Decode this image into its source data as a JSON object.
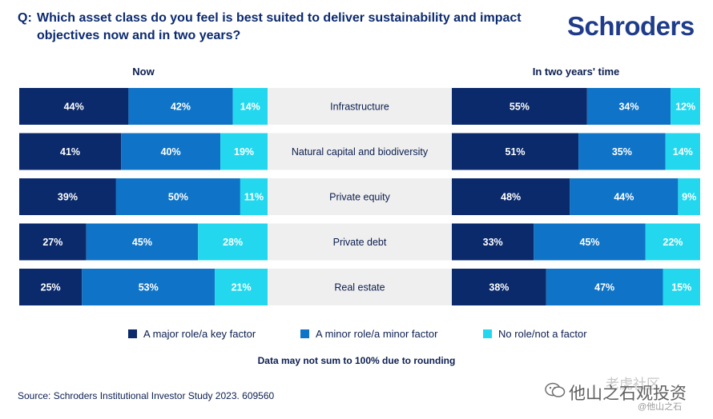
{
  "header": {
    "question_prefix": "Q:",
    "question": "Which asset class do you feel is best suited to deliver sustainability and impact objectives now and in two years?",
    "logo": "Schroders"
  },
  "panels": {
    "now": "Now",
    "future": "In two years' time"
  },
  "colors": {
    "major": "#0b2a6b",
    "minor": "#0f74c7",
    "none": "#23d8ee",
    "label_bg": "#efefef"
  },
  "chart_data": [
    {
      "type": "bar",
      "orientation": "horizontal",
      "stacked": true,
      "panel": "Now",
      "categories": [
        "Infrastructure",
        "Natural capital and biodiversity",
        "Private equity",
        "Private debt",
        "Real estate"
      ],
      "series": [
        {
          "name": "A major role/a key factor",
          "values": [
            44,
            41,
            39,
            27,
            25
          ]
        },
        {
          "name": "A minor role/a minor factor",
          "values": [
            42,
            40,
            50,
            45,
            53
          ]
        },
        {
          "name": "No role/not a factor",
          "values": [
            14,
            19,
            11,
            28,
            21
          ]
        }
      ],
      "value_labels": [
        [
          "44%",
          "42%",
          "14%"
        ],
        [
          "41%",
          "40%",
          "19%"
        ],
        [
          "39%",
          "50%",
          "11%"
        ],
        [
          "27%",
          "45%",
          "28%"
        ],
        [
          "25%",
          "53%",
          "21%"
        ]
      ]
    },
    {
      "type": "bar",
      "orientation": "horizontal",
      "stacked": true,
      "panel": "In two years' time",
      "categories": [
        "Infrastructure",
        "Natural capital and biodiversity",
        "Private equity",
        "Private debt",
        "Real estate"
      ],
      "series": [
        {
          "name": "A major role/a key factor",
          "values": [
            55,
            51,
            48,
            33,
            38
          ]
        },
        {
          "name": "A minor role/a minor factor",
          "values": [
            34,
            35,
            44,
            45,
            47
          ]
        },
        {
          "name": "No role/not a factor",
          "values": [
            12,
            14,
            9,
            22,
            15
          ]
        }
      ],
      "value_labels": [
        [
          "55%",
          "34%",
          "12%"
        ],
        [
          "51%",
          "35%",
          "14%"
        ],
        [
          "48%",
          "44%",
          "9%"
        ],
        [
          "33%",
          "45%",
          "22%"
        ],
        [
          "38%",
          "47%",
          "15%"
        ]
      ]
    }
  ],
  "legend": [
    {
      "label": "A major role/a key factor",
      "color": "#0b2a6b"
    },
    {
      "label": "A minor role/a minor factor",
      "color": "#0f74c7"
    },
    {
      "label": "No role/not a factor",
      "color": "#23d8ee"
    }
  ],
  "footer": {
    "note": "Data may not sum to 100% due to rounding",
    "source": "Source: Schroders Institutional Investor Study 2023. 609560"
  },
  "watermark": {
    "line1": "老虎社区",
    "main": "他山之石观投资",
    "sub": "@他山之石",
    "icon": "wechat-icon"
  }
}
